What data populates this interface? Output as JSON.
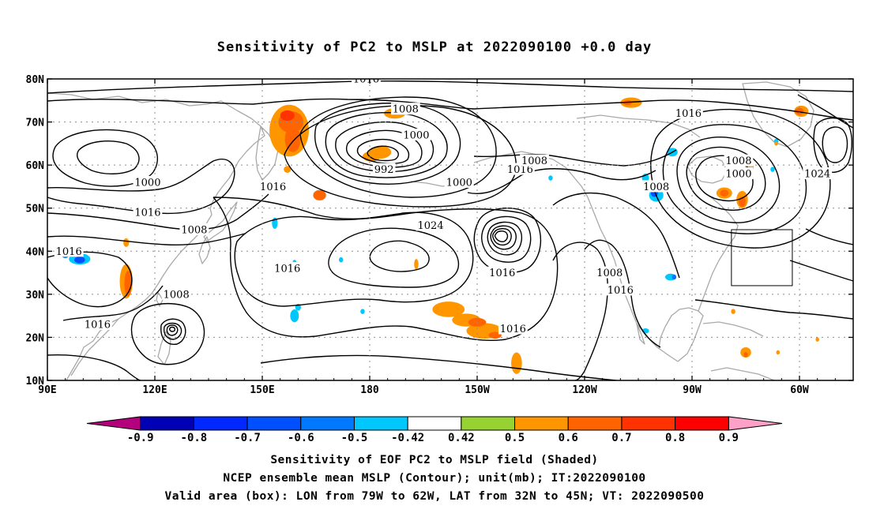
{
  "title": "Sensitivity of PC2 to MSLP at 2022090100 +0.0 day",
  "map": {
    "lon_ticks": [
      {
        "lon": 90,
        "label": "90E"
      },
      {
        "lon": 120,
        "label": "120E"
      },
      {
        "lon": 150,
        "label": "150E"
      },
      {
        "lon": 180,
        "label": "180"
      },
      {
        "lon": 210,
        "label": "150W"
      },
      {
        "lon": 240,
        "label": "120W"
      },
      {
        "lon": 270,
        "label": "90W"
      },
      {
        "lon": 300,
        "label": "60W"
      }
    ],
    "lat_ticks": [
      {
        "lat": 10,
        "label": "10N"
      },
      {
        "lat": 20,
        "label": "20N"
      },
      {
        "lat": 30,
        "label": "30N"
      },
      {
        "lat": 40,
        "label": "40N"
      },
      {
        "lat": 50,
        "label": "50N"
      },
      {
        "lat": 60,
        "label": "60N"
      },
      {
        "lat": 70,
        "label": "70N"
      },
      {
        "lat": 80,
        "label": "80N"
      }
    ],
    "lon_range": [
      90,
      315
    ],
    "lat_range": [
      10,
      80
    ],
    "grid": true,
    "valid_box": {
      "lon": [
        281,
        298
      ],
      "lat": [
        32,
        45
      ]
    },
    "contour_labels": [
      {
        "text": "1016",
        "lon": 179,
        "lat": 80
      },
      {
        "text": "1008",
        "lon": 190,
        "lat": 73
      },
      {
        "text": "1000",
        "lon": 193,
        "lat": 67
      },
      {
        "text": "992",
        "lon": 184,
        "lat": 59
      },
      {
        "text": "1000",
        "lon": 205,
        "lat": 56
      },
      {
        "text": "1016",
        "lon": 222,
        "lat": 59
      },
      {
        "text": "1008",
        "lon": 226,
        "lat": 61
      },
      {
        "text": "1016",
        "lon": 153,
        "lat": 55
      },
      {
        "text": "1000",
        "lon": 118,
        "lat": 56
      },
      {
        "text": "1016",
        "lon": 118,
        "lat": 49
      },
      {
        "text": "1008",
        "lon": 131,
        "lat": 45
      },
      {
        "text": "1016",
        "lon": 96,
        "lat": 40
      },
      {
        "text": "1016",
        "lon": 157,
        "lat": 36
      },
      {
        "text": "1024",
        "lon": 197,
        "lat": 46
      },
      {
        "text": "1016",
        "lon": 217,
        "lat": 35
      },
      {
        "text": "1008",
        "lon": 126,
        "lat": 30
      },
      {
        "text": "1016",
        "lon": 104,
        "lat": 23
      },
      {
        "text": "1016",
        "lon": 220,
        "lat": 22
      },
      {
        "text": "1008",
        "lon": 247,
        "lat": 35
      },
      {
        "text": "1016",
        "lon": 250,
        "lat": 31
      },
      {
        "text": "1008",
        "lon": 260,
        "lat": 55
      },
      {
        "text": "1008",
        "lon": 283,
        "lat": 61
      },
      {
        "text": "1000",
        "lon": 283,
        "lat": 58
      },
      {
        "text": "1016",
        "lon": 269,
        "lat": 72
      },
      {
        "text": "1024",
        "lon": 305,
        "lat": 58
      }
    ],
    "sensitivity_patches": [
      {
        "lon": 157.5,
        "lat": 68,
        "rx": 5.5,
        "ry": 6,
        "value": 0.5
      },
      {
        "lon": 158,
        "lat": 70,
        "rx": 3.5,
        "ry": 2.5,
        "value": 0.6
      },
      {
        "lon": 157,
        "lat": 71.5,
        "rx": 2,
        "ry": 1.2,
        "value": 0.7
      },
      {
        "lon": 158.5,
        "lat": 66,
        "rx": 2.2,
        "ry": 3,
        "value": 0.6
      },
      {
        "lon": 187,
        "lat": 72,
        "rx": 3,
        "ry": 1.2,
        "value": 0.5
      },
      {
        "lon": 183,
        "lat": 63,
        "rx": 3,
        "ry": 1.5,
        "value": 0.5
      },
      {
        "lon": 180.5,
        "lat": 62,
        "rx": 2.5,
        "ry": 1.2,
        "value": 0.5
      },
      {
        "lon": 166,
        "lat": 53,
        "rx": 1.8,
        "ry": 1.2,
        "value": 0.6
      },
      {
        "lon": 157,
        "lat": 59,
        "rx": 1,
        "ry": 0.8,
        "value": 0.5
      },
      {
        "lon": 112,
        "lat": 33,
        "rx": 1.8,
        "ry": 4,
        "value": 0.5
      },
      {
        "lon": 112.5,
        "lat": 32.5,
        "rx": 1,
        "ry": 3,
        "value": 0.6
      },
      {
        "lon": 112,
        "lat": 42,
        "rx": 0.8,
        "ry": 1,
        "value": 0.5
      },
      {
        "lon": 99,
        "lat": 38.2,
        "rx": 3,
        "ry": 1.3,
        "value": -0.5
      },
      {
        "lon": 99,
        "lat": 38,
        "rx": 1.5,
        "ry": 0.8,
        "value": -0.7
      },
      {
        "lon": 95,
        "lat": 39,
        "rx": 1,
        "ry": 0.6,
        "value": -0.6
      },
      {
        "lon": 153.5,
        "lat": 46.5,
        "rx": 0.8,
        "ry": 1.3,
        "value": -0.5
      },
      {
        "lon": 159,
        "lat": 25,
        "rx": 1.2,
        "ry": 1.5,
        "value": -0.5
      },
      {
        "lon": 160,
        "lat": 27,
        "rx": 0.8,
        "ry": 0.8,
        "value": -0.5
      },
      {
        "lon": 172,
        "lat": 38,
        "rx": 0.6,
        "ry": 0.6,
        "value": -0.5
      },
      {
        "lon": 178,
        "lat": 26,
        "rx": 0.6,
        "ry": 0.6,
        "value": -0.5
      },
      {
        "lon": 193,
        "lat": 37,
        "rx": 0.6,
        "ry": 1.2,
        "value": 0.5
      },
      {
        "lon": 202,
        "lat": 26.5,
        "rx": 4.5,
        "ry": 1.8,
        "value": 0.5
      },
      {
        "lon": 207,
        "lat": 24,
        "rx": 4,
        "ry": 1.5,
        "value": 0.5
      },
      {
        "lon": 212,
        "lat": 21.5,
        "rx": 5,
        "ry": 1.8,
        "value": 0.5
      },
      {
        "lon": 210,
        "lat": 23.5,
        "rx": 2.5,
        "ry": 1,
        "value": 0.6
      },
      {
        "lon": 215,
        "lat": 20.5,
        "rx": 1.8,
        "ry": 0.8,
        "value": 0.6
      },
      {
        "lon": 221,
        "lat": 14,
        "rx": 1.5,
        "ry": 2.5,
        "value": 0.5
      },
      {
        "lon": 230.5,
        "lat": 57,
        "rx": 0.6,
        "ry": 0.6,
        "value": -0.5
      },
      {
        "lon": 257,
        "lat": 57,
        "rx": 1,
        "ry": 1,
        "value": -0.5
      },
      {
        "lon": 260,
        "lat": 53,
        "rx": 2,
        "ry": 1.5,
        "value": -0.5
      },
      {
        "lon": 259.5,
        "lat": 53.5,
        "rx": 1,
        "ry": 0.9,
        "value": -0.7
      },
      {
        "lon": 264.5,
        "lat": 63,
        "rx": 1.5,
        "ry": 1,
        "value": -0.5
      },
      {
        "lon": 264,
        "lat": 34,
        "rx": 1.5,
        "ry": 0.8,
        "value": -0.5
      },
      {
        "lon": 257,
        "lat": 21.5,
        "rx": 1,
        "ry": 0.6,
        "value": -0.5
      },
      {
        "lon": 265,
        "lat": 34,
        "rx": 0.6,
        "ry": 0.6,
        "value": -0.6
      },
      {
        "lon": 253,
        "lat": 74.5,
        "rx": 3,
        "ry": 1.2,
        "value": 0.5
      },
      {
        "lon": 252,
        "lat": 74.5,
        "rx": 1.2,
        "ry": 0.6,
        "value": 0.6
      },
      {
        "lon": 279,
        "lat": 53.5,
        "rx": 2.2,
        "ry": 1.3,
        "value": 0.5
      },
      {
        "lon": 279,
        "lat": 53.5,
        "rx": 1.2,
        "ry": 0.8,
        "value": 0.6
      },
      {
        "lon": 284,
        "lat": 52,
        "rx": 1.6,
        "ry": 2,
        "value": 0.5
      },
      {
        "lon": 284,
        "lat": 51.5,
        "rx": 1,
        "ry": 1.2,
        "value": 0.6
      },
      {
        "lon": 286,
        "lat": 59.5,
        "rx": 1.2,
        "ry": 1,
        "value": 0.5
      },
      {
        "lon": 292.5,
        "lat": 59,
        "rx": 0.6,
        "ry": 0.6,
        "value": -0.5
      },
      {
        "lon": 293.5,
        "lat": 65.5,
        "rx": 0.6,
        "ry": 0.6,
        "value": -0.5
      },
      {
        "lon": 293.5,
        "lat": 65,
        "rx": 0.5,
        "ry": 0.5,
        "value": 0.5
      },
      {
        "lon": 281.5,
        "lat": 26,
        "rx": 0.6,
        "ry": 0.6,
        "value": 0.5
      },
      {
        "lon": 285,
        "lat": 16.5,
        "rx": 1.5,
        "ry": 1.2,
        "value": 0.5
      },
      {
        "lon": 285,
        "lat": 16,
        "rx": 0.6,
        "ry": 0.6,
        "value": 0.6
      },
      {
        "lon": 300.5,
        "lat": 72.5,
        "rx": 2,
        "ry": 1.3,
        "value": 0.5
      },
      {
        "lon": 300,
        "lat": 72.5,
        "rx": 1.2,
        "ry": 0.8,
        "value": 0.6
      },
      {
        "lon": 159,
        "lat": 37.5,
        "rx": 0.5,
        "ry": 0.5,
        "value": -0.5
      },
      {
        "lon": 294,
        "lat": 16.5,
        "rx": 0.5,
        "ry": 0.5,
        "value": 0.5
      },
      {
        "lon": 305,
        "lat": 19.5,
        "rx": 0.5,
        "ry": 0.5,
        "value": 0.5
      }
    ]
  },
  "colorbar": {
    "labels": [
      "-0.9",
      "-0.8",
      "-0.7",
      "-0.6",
      "-0.5",
      "-0.42",
      "0.42",
      "0.5",
      "0.6",
      "0.7",
      "0.8",
      "0.9"
    ],
    "colors": [
      "#b4007d",
      "#0000b4",
      "#0028ff",
      "#0050ff",
      "#0078ff",
      "#00c8ff",
      "#ffffff",
      "#96d232",
      "#ff9600",
      "#ff6400",
      "#ff3200",
      "#ff0000",
      "#ffa0c8"
    ]
  },
  "captions": {
    "line1": "Sensitivity of EOF PC2 to MSLP field (Shaded)",
    "line2": "NCEP ensemble mean MSLP (Contour); unit(mb); IT:2022090100",
    "line3": "Valid area (box): LON from 79W to 62W, LAT from 32N to 45N; VT: 2022090500"
  }
}
